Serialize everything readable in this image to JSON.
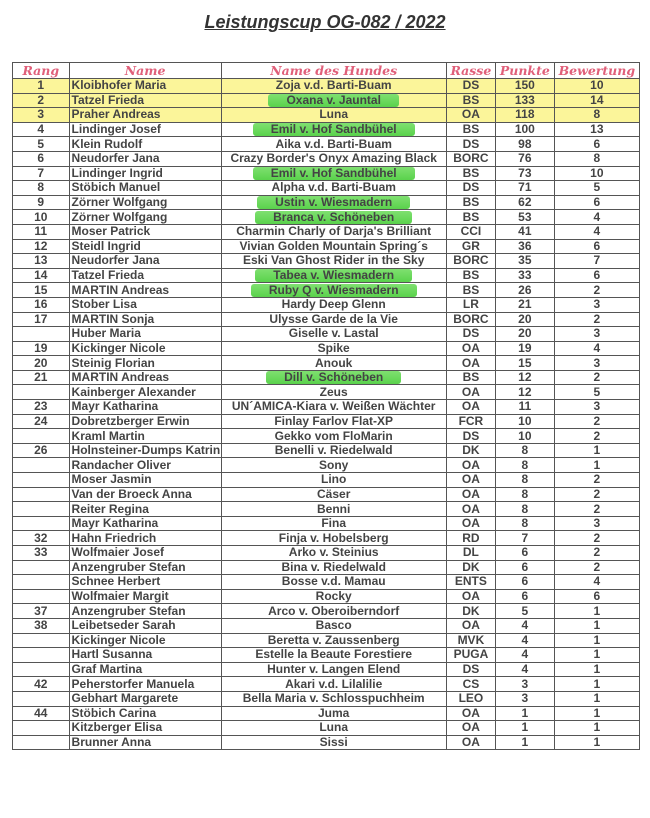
{
  "title": "Leistungscup OG-082 / 2022",
  "colors": {
    "header_text": "#e0607a",
    "top3_highlight": "#fbf59a",
    "marker_highlight": "#5ad24c"
  },
  "columns": [
    "Rang",
    "Name",
    "Name des Hundes",
    "Rasse",
    "Punkte",
    "Bewertung"
  ],
  "rows": [
    {
      "rang": "1",
      "name": "Kloibhofer Maria",
      "hund": "Zoja v.d. Barti-Buam",
      "rasse": "DS",
      "punkte": "150",
      "bewertung": "10",
      "top": true
    },
    {
      "rang": "2",
      "name": "Tatzel Frieda",
      "hund": "Oxana v. Jauntal",
      "rasse": "BS",
      "punkte": "133",
      "bewertung": "14",
      "top": true,
      "marked": true
    },
    {
      "rang": "3",
      "name": "Praher Andreas",
      "hund": "Luna",
      "rasse": "OA",
      "punkte": "118",
      "bewertung": "8",
      "top": true
    },
    {
      "rang": "4",
      "name": "Lindinger Josef",
      "hund": "Emil v. Hof Sandbühel",
      "rasse": "BS",
      "punkte": "100",
      "bewertung": "13",
      "marked": true
    },
    {
      "rang": "5",
      "name": "Klein Rudolf",
      "hund": "Aika v.d. Barti-Buam",
      "rasse": "DS",
      "punkte": "98",
      "bewertung": "6"
    },
    {
      "rang": "6",
      "name": "Neudorfer Jana",
      "hund": "Crazy Border's Onyx Amazing Black",
      "rasse": "BORC",
      "punkte": "76",
      "bewertung": "8"
    },
    {
      "rang": "7",
      "name": "Lindinger Ingrid",
      "hund": "Emil v. Hof Sandbühel",
      "rasse": "BS",
      "punkte": "73",
      "bewertung": "10",
      "marked": true
    },
    {
      "rang": "8",
      "name": "Stöbich Manuel",
      "hund": "Alpha v.d. Barti-Buam",
      "rasse": "DS",
      "punkte": "71",
      "bewertung": "5"
    },
    {
      "rang": "9",
      "name": "Zörner Wolfgang",
      "hund": "Ustin v. Wiesmadern",
      "rasse": "BS",
      "punkte": "62",
      "bewertung": "6",
      "marked": true
    },
    {
      "rang": "10",
      "name": "Zörner Wolfgang",
      "hund": "Branca v. Schöneben",
      "rasse": "BS",
      "punkte": "53",
      "bewertung": "4",
      "marked": true
    },
    {
      "rang": "11",
      "name": "Moser Patrick",
      "hund": "Charmin Charly of Darja's Brilliant",
      "rasse": "CCI",
      "punkte": "41",
      "bewertung": "4"
    },
    {
      "rang": "12",
      "name": "Steidl Ingrid",
      "hund": "Vivian Golden Mountain Spring´s",
      "rasse": "GR",
      "punkte": "36",
      "bewertung": "6"
    },
    {
      "rang": "13",
      "name": "Neudorfer Jana",
      "hund": "Eski Van Ghost Rider in the Sky",
      "rasse": "BORC",
      "punkte": "35",
      "bewertung": "7"
    },
    {
      "rang": "14",
      "name": "Tatzel Frieda",
      "hund": "Tabea v. Wiesmadern",
      "rasse": "BS",
      "punkte": "33",
      "bewertung": "6",
      "marked": true
    },
    {
      "rang": "15",
      "name": "MARTIN Andreas",
      "hund": "Ruby Q v. Wiesmadern",
      "rasse": "BS",
      "punkte": "26",
      "bewertung": "2",
      "marked": true
    },
    {
      "rang": "16",
      "name": "Stober Lisa",
      "hund": "Hardy Deep Glenn",
      "rasse": "LR",
      "punkte": "21",
      "bewertung": "3"
    },
    {
      "rang": "17",
      "name": "MARTIN Sonja",
      "hund": "Ulysse Garde de la Vie",
      "rasse": "BORC",
      "punkte": "20",
      "bewertung": "2"
    },
    {
      "rang": "",
      "name": "Huber Maria",
      "hund": "Giselle v. Lastal",
      "rasse": "DS",
      "punkte": "20",
      "bewertung": "3"
    },
    {
      "rang": "19",
      "name": "Kickinger Nicole",
      "hund": "Spike",
      "rasse": "OA",
      "punkte": "19",
      "bewertung": "4"
    },
    {
      "rang": "20",
      "name": "Steinig Florian",
      "hund": "Anouk",
      "rasse": "OA",
      "punkte": "15",
      "bewertung": "3"
    },
    {
      "rang": "21",
      "name": "MARTIN Andreas",
      "hund": "Dill v. Schöneben",
      "rasse": "BS",
      "punkte": "12",
      "bewertung": "2",
      "marked": true
    },
    {
      "rang": "",
      "name": "Kainberger Alexander",
      "hund": "Zeus",
      "rasse": "OA",
      "punkte": "12",
      "bewertung": "5"
    },
    {
      "rang": "23",
      "name": "Mayr Katharina",
      "hund": "UN´AMICA-Kiara v. Weißen Wächter",
      "rasse": "OA",
      "punkte": "11",
      "bewertung": "3"
    },
    {
      "rang": "24",
      "name": "Dobretzberger Erwin",
      "hund": "Finlay Farlov Flat-XP",
      "rasse": "FCR",
      "punkte": "10",
      "bewertung": "2"
    },
    {
      "rang": "",
      "name": "Kraml Martin",
      "hund": "Gekko vom FloMarin",
      "rasse": "DS",
      "punkte": "10",
      "bewertung": "2"
    },
    {
      "rang": "26",
      "name": "Holnsteiner-Dumps Katrin",
      "hund": "Benelli v. Riedelwald",
      "rasse": "DK",
      "punkte": "8",
      "bewertung": "1"
    },
    {
      "rang": "",
      "name": "Randacher Oliver",
      "hund": "Sony",
      "rasse": "OA",
      "punkte": "8",
      "bewertung": "1"
    },
    {
      "rang": "",
      "name": "Moser Jasmin",
      "hund": "Lino",
      "rasse": "OA",
      "punkte": "8",
      "bewertung": "2"
    },
    {
      "rang": "",
      "name": "Van der Broeck Anna",
      "hund": "Cäser",
      "rasse": "OA",
      "punkte": "8",
      "bewertung": "2"
    },
    {
      "rang": "",
      "name": "Reiter Regina",
      "hund": "Benni",
      "rasse": "OA",
      "punkte": "8",
      "bewertung": "2"
    },
    {
      "rang": "",
      "name": "Mayr Katharina",
      "hund": "Fina",
      "rasse": "OA",
      "punkte": "8",
      "bewertung": "3"
    },
    {
      "rang": "32",
      "name": "Hahn Friedrich",
      "hund": "Finja v. Hobelsberg",
      "rasse": "RD",
      "punkte": "7",
      "bewertung": "2"
    },
    {
      "rang": "33",
      "name": "Wolfmaier Josef",
      "hund": "Arko v. Steinius",
      "rasse": "DL",
      "punkte": "6",
      "bewertung": "2"
    },
    {
      "rang": "",
      "name": "Anzengruber Stefan",
      "hund": "Bina v. Riedelwald",
      "rasse": "DK",
      "punkte": "6",
      "bewertung": "2"
    },
    {
      "rang": "",
      "name": "Schnee Herbert",
      "hund": "Bosse v.d. Mamau",
      "rasse": "ENTS",
      "punkte": "6",
      "bewertung": "4"
    },
    {
      "rang": "",
      "name": "Wolfmaier Margit",
      "hund": "Rocky",
      "rasse": "OA",
      "punkte": "6",
      "bewertung": "6"
    },
    {
      "rang": "37",
      "name": "Anzengruber Stefan",
      "hund": "Arco v. Oberoiberndorf",
      "rasse": "DK",
      "punkte": "5",
      "bewertung": "1"
    },
    {
      "rang": "38",
      "name": "Leibetseder Sarah",
      "hund": "Basco",
      "rasse": "OA",
      "punkte": "4",
      "bewertung": "1"
    },
    {
      "rang": "",
      "name": "Kickinger Nicole",
      "hund": "Beretta v. Zaussenberg",
      "rasse": "MVK",
      "punkte": "4",
      "bewertung": "1"
    },
    {
      "rang": "",
      "name": "Hartl Susanna",
      "hund": "Estelle la Beaute Forestiere",
      "rasse": "PUGA",
      "punkte": "4",
      "bewertung": "1"
    },
    {
      "rang": "",
      "name": "Graf Martina",
      "hund": "Hunter v. Langen Elend",
      "rasse": "DS",
      "punkte": "4",
      "bewertung": "1"
    },
    {
      "rang": "42",
      "name": "Peherstorfer Manuela",
      "hund": "Akari v.d. Lilalilie",
      "rasse": "CS",
      "punkte": "3",
      "bewertung": "1"
    },
    {
      "rang": "",
      "name": "Gebhart Margarete",
      "hund": "Bella Maria v. Schlosspuchheim",
      "rasse": "LEO",
      "punkte": "3",
      "bewertung": "1"
    },
    {
      "rang": "44",
      "name": "Stöbich Carina",
      "hund": "Juma",
      "rasse": "OA",
      "punkte": "1",
      "bewertung": "1"
    },
    {
      "rang": "",
      "name": "Kitzberger Elisa",
      "hund": "Luna",
      "rasse": "OA",
      "punkte": "1",
      "bewertung": "1"
    },
    {
      "rang": "",
      "name": "Brunner Anna",
      "hund": "Sissi",
      "rasse": "OA",
      "punkte": "1",
      "bewertung": "1"
    }
  ]
}
